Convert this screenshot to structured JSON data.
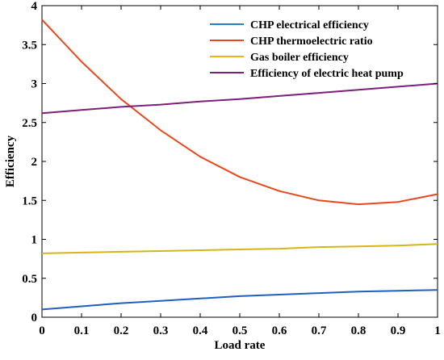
{
  "chart_data": {
    "type": "line",
    "title": "",
    "xlabel": "Load rate",
    "ylabel": "Efficiency",
    "xlim": [
      0,
      1
    ],
    "ylim": [
      0,
      4
    ],
    "x_ticks": [
      0,
      0.1,
      0.2,
      0.3,
      0.4,
      0.5,
      0.6,
      0.7,
      0.8,
      0.9,
      1
    ],
    "x_tick_labels": [
      "0",
      "0.1",
      "0.2",
      "0.3",
      "0.4",
      "0.5",
      "0.6",
      "0.7",
      "0.8",
      "0.9",
      "1"
    ],
    "y_ticks": [
      0,
      0.5,
      1,
      1.5,
      2,
      2.5,
      3,
      3.5,
      4
    ],
    "y_tick_labels": [
      "0",
      "0.5",
      "1",
      "1.5",
      "2",
      "2.5",
      "3",
      "3.5",
      "4"
    ],
    "grid": false,
    "legend_position": "top-right",
    "x": [
      0,
      0.1,
      0.2,
      0.3,
      0.4,
      0.5,
      0.6,
      0.7,
      0.8,
      0.9,
      1
    ],
    "series": [
      {
        "name": "CHP electrical efficiency",
        "color": "#1f5fbf",
        "values": [
          0.1,
          0.14,
          0.18,
          0.21,
          0.24,
          0.27,
          0.29,
          0.31,
          0.33,
          0.34,
          0.35
        ]
      },
      {
        "name": "CHP thermoelectric ratio",
        "color": "#e8481c",
        "values": [
          3.82,
          3.28,
          2.8,
          2.4,
          2.06,
          1.8,
          1.62,
          1.5,
          1.45,
          1.48,
          1.58
        ]
      },
      {
        "name": "Gas boiler efficiency",
        "color": "#d6b51c",
        "values": [
          0.82,
          0.83,
          0.84,
          0.85,
          0.86,
          0.87,
          0.88,
          0.9,
          0.91,
          0.92,
          0.94
        ]
      },
      {
        "name": "Efficiency of electric heat pump",
        "color": "#7d1f7d",
        "values": [
          2.62,
          2.66,
          2.7,
          2.73,
          2.77,
          2.8,
          2.84,
          2.88,
          2.92,
          2.96,
          3.0
        ]
      }
    ],
    "legend_colors": [
      "#2a7fc0",
      "#e8481c",
      "#e8b41a",
      "#7d1f7d"
    ]
  }
}
